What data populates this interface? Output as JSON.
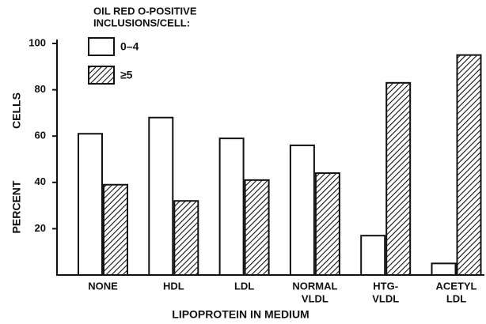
{
  "chart_data": {
    "type": "bar",
    "legend_title": [
      "OIL RED O-POSITIVE",
      "INCLUSIONS/CELL:"
    ],
    "xlabel": "LIPOPROTEIN IN MEDIUM",
    "ylabel": [
      "PERCENT",
      "CELLS"
    ],
    "categories": [
      [
        "NONE"
      ],
      [
        "HDL"
      ],
      [
        "LDL"
      ],
      [
        "NORMAL",
        "VLDL"
      ],
      [
        "HTG-",
        "VLDL"
      ],
      [
        "ACETYL",
        "LDL"
      ]
    ],
    "series": [
      {
        "name": "0–4",
        "color": "#ffffff",
        "pattern": "solid",
        "values": [
          61,
          68,
          59,
          56,
          17,
          5
        ]
      },
      {
        "name": "≥5",
        "color": "#111111",
        "pattern": "hatch",
        "values": [
          39,
          32,
          41,
          44,
          83,
          95
        ]
      }
    ],
    "ylim": [
      0,
      100
    ],
    "yticks": [
      20,
      40,
      60,
      80,
      100
    ],
    "grid": false
  }
}
